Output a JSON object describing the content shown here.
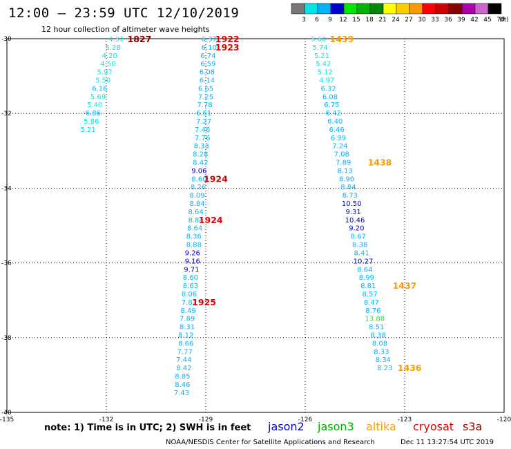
{
  "title": "12:00 – 23:59 UTC 12/10/2019",
  "subtitle": "12 hour collection of altimeter wave heights",
  "note": "note: 1) Time is in UTC; 2) SWH is in feet",
  "credit": "NOAA/NESDIS Center for Satellite Applications and Research",
  "timestamp": "Dec 11 13:27:54 UTC 2019",
  "legend": [
    {
      "name": "jason2",
      "color": "#0000cc"
    },
    {
      "name": "jason3",
      "color": "#00aa00"
    },
    {
      "name": "altika",
      "color": "#ff9900"
    },
    {
      "name": "cryosat",
      "color": "#dd0000"
    },
    {
      "name": "s3a",
      "color": "#880000"
    }
  ],
  "colorbar": {
    "labels": [
      "3",
      "6",
      "9",
      "12",
      "15",
      "18",
      "21",
      "24",
      "27",
      "30",
      "33",
      "36",
      "39",
      "42",
      "45",
      "70",
      "(ft)"
    ],
    "colors": [
      "#777777",
      "#00e6e6",
      "#00b3ff",
      "#0000cc",
      "#00e600",
      "#00b300",
      "#008800",
      "#ffff00",
      "#ffcc00",
      "#ff9900",
      "#ff0000",
      "#cc0000",
      "#880000",
      "#aa00aa",
      "#cc66cc",
      "#000000"
    ]
  },
  "chart_data": {
    "type": "scatter",
    "x_axis": {
      "ticks": [
        -135,
        -132,
        -129,
        -126,
        -123,
        -120
      ]
    },
    "y_axis": {
      "ticks": [
        -30,
        -32,
        -34,
        -36,
        -38,
        -40
      ],
      "ylim": [
        -40,
        -30
      ]
    },
    "grid": true,
    "tracks": [
      {
        "points": [
          {
            "lon": -131.7,
            "lat": -30.0,
            "v": "4.31",
            "c": "#00e6e6"
          },
          {
            "lon": -131.8,
            "lat": -30.22,
            "v": "5.28",
            "c": "#00e6e6"
          },
          {
            "lon": -131.9,
            "lat": -30.44,
            "v": "4.20",
            "c": "#00e6e6"
          },
          {
            "lon": -131.95,
            "lat": -30.66,
            "v": "4.50",
            "c": "#00e6e6"
          },
          {
            "lon": -132.05,
            "lat": -30.88,
            "v": "5.97",
            "c": "#00e6e6"
          },
          {
            "lon": -132.1,
            "lat": -31.1,
            "v": "5.50",
            "c": "#00e6e6"
          },
          {
            "lon": -132.2,
            "lat": -31.32,
            "v": "6.16",
            "c": "#00b3ff"
          },
          {
            "lon": -132.25,
            "lat": -31.54,
            "v": "5.69",
            "c": "#00e6e6"
          },
          {
            "lon": -132.35,
            "lat": -31.76,
            "v": "5.40",
            "c": "#00e6e6"
          },
          {
            "lon": -132.4,
            "lat": -31.98,
            "v": "6.86",
            "c": "#00b3ff"
          },
          {
            "lon": -132.45,
            "lat": -32.2,
            "v": "5.86",
            "c": "#00e6e6"
          },
          {
            "lon": -132.55,
            "lat": -32.42,
            "v": "5.21",
            "c": "#00e6e6"
          }
        ]
      },
      {
        "points": [
          {
            "lon": -128.9,
            "lat": -30.0,
            "v": "6.37",
            "c": "#00b3ff"
          },
          {
            "lon": -128.9,
            "lat": -30.22,
            "v": "6.10",
            "c": "#00b3ff"
          },
          {
            "lon": -128.93,
            "lat": -30.44,
            "v": "6.74",
            "c": "#00b3ff"
          },
          {
            "lon": -128.93,
            "lat": -30.66,
            "v": "6.59",
            "c": "#00b3ff"
          },
          {
            "lon": -128.96,
            "lat": -30.88,
            "v": "6.08",
            "c": "#00b3ff"
          },
          {
            "lon": -128.96,
            "lat": -31.1,
            "v": "6.14",
            "c": "#00b3ff"
          },
          {
            "lon": -129.0,
            "lat": -31.32,
            "v": "6.65",
            "c": "#00b3ff"
          },
          {
            "lon": -129.0,
            "lat": -31.54,
            "v": "7.25",
            "c": "#00b3ff"
          },
          {
            "lon": -129.03,
            "lat": -31.76,
            "v": "7.78",
            "c": "#00b3ff"
          },
          {
            "lon": -129.06,
            "lat": -31.98,
            "v": "6.61",
            "c": "#00b3ff"
          },
          {
            "lon": -129.06,
            "lat": -32.2,
            "v": "7.27",
            "c": "#00b3ff"
          },
          {
            "lon": -129.1,
            "lat": -32.42,
            "v": "7.46",
            "c": "#00b3ff"
          },
          {
            "lon": -129.1,
            "lat": -32.64,
            "v": "7.76",
            "c": "#00b3ff"
          },
          {
            "lon": -129.13,
            "lat": -32.86,
            "v": "8.33",
            "c": "#00b3ff"
          },
          {
            "lon": -129.16,
            "lat": -33.08,
            "v": "8.28",
            "c": "#00b3ff"
          },
          {
            "lon": -129.16,
            "lat": -33.3,
            "v": "8.42",
            "c": "#00b3ff"
          },
          {
            "lon": -129.2,
            "lat": -33.52,
            "v": "9.06",
            "c": "#0000cc"
          },
          {
            "lon": -129.2,
            "lat": -33.74,
            "v": "8.60",
            "c": "#00b3ff"
          },
          {
            "lon": -129.23,
            "lat": -33.96,
            "v": "8.26",
            "c": "#00b3ff"
          },
          {
            "lon": -129.26,
            "lat": -34.18,
            "v": "8.09",
            "c": "#00b3ff"
          },
          {
            "lon": -129.26,
            "lat": -34.4,
            "v": "8.84",
            "c": "#00b3ff"
          },
          {
            "lon": -129.3,
            "lat": -34.62,
            "v": "8.64",
            "c": "#00b3ff"
          },
          {
            "lon": -129.3,
            "lat": -34.84,
            "v": "8.84",
            "c": "#00b3ff"
          },
          {
            "lon": -129.33,
            "lat": -35.06,
            "v": "8.64",
            "c": "#00b3ff"
          },
          {
            "lon": -129.36,
            "lat": -35.28,
            "v": "8.36",
            "c": "#00b3ff"
          },
          {
            "lon": -129.36,
            "lat": -35.5,
            "v": "8.88",
            "c": "#00b3ff"
          },
          {
            "lon": -129.4,
            "lat": -35.72,
            "v": "9.26",
            "c": "#0000cc"
          },
          {
            "lon": -129.4,
            "lat": -35.94,
            "v": "9.16",
            "c": "#0000cc"
          },
          {
            "lon": -129.43,
            "lat": -36.16,
            "v": "9.71",
            "c": "#0000cc"
          },
          {
            "lon": -129.46,
            "lat": -36.38,
            "v": "8.60",
            "c": "#00b3ff"
          },
          {
            "lon": -129.46,
            "lat": -36.6,
            "v": "8.63",
            "c": "#00b3ff"
          },
          {
            "lon": -129.5,
            "lat": -36.82,
            "v": "8.06",
            "c": "#00b3ff"
          },
          {
            "lon": -129.5,
            "lat": -37.04,
            "v": "7.82",
            "c": "#00b3ff"
          },
          {
            "lon": -129.53,
            "lat": -37.26,
            "v": "8.49",
            "c": "#00b3ff"
          },
          {
            "lon": -129.56,
            "lat": -37.48,
            "v": "7.89",
            "c": "#00b3ff"
          },
          {
            "lon": -129.56,
            "lat": -37.7,
            "v": "8.31",
            "c": "#00b3ff"
          },
          {
            "lon": -129.6,
            "lat": -37.92,
            "v": "8.12",
            "c": "#00b3ff"
          },
          {
            "lon": -129.6,
            "lat": -38.14,
            "v": "8.66",
            "c": "#00b3ff"
          },
          {
            "lon": -129.63,
            "lat": -38.36,
            "v": "7.77",
            "c": "#00b3ff"
          },
          {
            "lon": -129.66,
            "lat": -38.58,
            "v": "7.44",
            "c": "#00b3ff"
          },
          {
            "lon": -129.66,
            "lat": -38.8,
            "v": "8.42",
            "c": "#00b3ff"
          },
          {
            "lon": -129.7,
            "lat": -39.02,
            "v": "8.85",
            "c": "#00b3ff"
          },
          {
            "lon": -129.7,
            "lat": -39.24,
            "v": "8.46",
            "c": "#00b3ff"
          },
          {
            "lon": -129.73,
            "lat": -39.46,
            "v": "7.43",
            "c": "#00b3ff"
          }
        ]
      },
      {
        "points": [
          {
            "lon": -125.6,
            "lat": -30.0,
            "v": "5.60",
            "c": "#00e6e6"
          },
          {
            "lon": -125.55,
            "lat": -30.22,
            "v": "5.74",
            "c": "#00e6e6"
          },
          {
            "lon": -125.5,
            "lat": -30.44,
            "v": "5.21",
            "c": "#00e6e6"
          },
          {
            "lon": -125.45,
            "lat": -30.66,
            "v": "5.42",
            "c": "#00e6e6"
          },
          {
            "lon": -125.4,
            "lat": -30.88,
            "v": "5.12",
            "c": "#00e6e6"
          },
          {
            "lon": -125.35,
            "lat": -31.1,
            "v": "4.97",
            "c": "#00e6e6"
          },
          {
            "lon": -125.3,
            "lat": -31.32,
            "v": "6.32",
            "c": "#00b3ff"
          },
          {
            "lon": -125.25,
            "lat": -31.54,
            "v": "6.08",
            "c": "#00b3ff"
          },
          {
            "lon": -125.2,
            "lat": -31.76,
            "v": "6.75",
            "c": "#00b3ff"
          },
          {
            "lon": -125.15,
            "lat": -31.98,
            "v": "6.42",
            "c": "#00b3ff"
          },
          {
            "lon": -125.1,
            "lat": -32.2,
            "v": "6.40",
            "c": "#00b3ff"
          },
          {
            "lon": -125.05,
            "lat": -32.42,
            "v": "6.46",
            "c": "#00b3ff"
          },
          {
            "lon": -125.0,
            "lat": -32.64,
            "v": "6.99",
            "c": "#00b3ff"
          },
          {
            "lon": -124.95,
            "lat": -32.86,
            "v": "7.24",
            "c": "#00b3ff"
          },
          {
            "lon": -124.9,
            "lat": -33.08,
            "v": "7.08",
            "c": "#00b3ff"
          },
          {
            "lon": -124.85,
            "lat": -33.3,
            "v": "7.89",
            "c": "#00b3ff"
          },
          {
            "lon": -124.8,
            "lat": -33.52,
            "v": "8.13",
            "c": "#00b3ff"
          },
          {
            "lon": -124.75,
            "lat": -33.74,
            "v": "8.90",
            "c": "#00b3ff"
          },
          {
            "lon": -124.7,
            "lat": -33.96,
            "v": "8.84",
            "c": "#00b3ff"
          },
          {
            "lon": -124.65,
            "lat": -34.18,
            "v": "8.73",
            "c": "#00b3ff"
          },
          {
            "lon": -124.6,
            "lat": -34.4,
            "v": "10.50",
            "c": "#0000cc"
          },
          {
            "lon": -124.55,
            "lat": -34.62,
            "v": "9.31",
            "c": "#0000cc"
          },
          {
            "lon": -124.5,
            "lat": -34.84,
            "v": "10.46",
            "c": "#0000cc"
          },
          {
            "lon": -124.45,
            "lat": -35.06,
            "v": "9.20",
            "c": "#0000cc"
          },
          {
            "lon": -124.4,
            "lat": -35.28,
            "v": "8.67",
            "c": "#00b3ff"
          },
          {
            "lon": -124.35,
            "lat": -35.5,
            "v": "8.38",
            "c": "#00b3ff"
          },
          {
            "lon": -124.3,
            "lat": -35.72,
            "v": "8.41",
            "c": "#00b3ff"
          },
          {
            "lon": -124.25,
            "lat": -35.94,
            "v": "10.27",
            "c": "#0000cc"
          },
          {
            "lon": -124.2,
            "lat": -36.16,
            "v": "8.64",
            "c": "#00b3ff"
          },
          {
            "lon": -124.15,
            "lat": -36.38,
            "v": "8.99",
            "c": "#00b3ff"
          },
          {
            "lon": -124.1,
            "lat": -36.6,
            "v": "8.81",
            "c": "#00b3ff"
          },
          {
            "lon": -124.05,
            "lat": -36.82,
            "v": "8.57",
            "c": "#00b3ff"
          },
          {
            "lon": -124.0,
            "lat": -37.04,
            "v": "8.47",
            "c": "#00b3ff"
          },
          {
            "lon": -123.95,
            "lat": -37.26,
            "v": "8.76",
            "c": "#00b3ff"
          },
          {
            "lon": -123.9,
            "lat": -37.48,
            "v": "13.88",
            "c": "#33dd33"
          },
          {
            "lon": -123.85,
            "lat": -37.7,
            "v": "8.51",
            "c": "#00b3ff"
          },
          {
            "lon": -123.8,
            "lat": -37.92,
            "v": "8.38",
            "c": "#00b3ff"
          },
          {
            "lon": -123.75,
            "lat": -38.14,
            "v": "8.08",
            "c": "#00b3ff"
          },
          {
            "lon": -123.7,
            "lat": -38.36,
            "v": "8.33",
            "c": "#00b3ff"
          },
          {
            "lon": -123.65,
            "lat": -38.58,
            "v": "8.34",
            "c": "#00b3ff"
          },
          {
            "lon": -123.6,
            "lat": -38.8,
            "v": "8.23",
            "c": "#00b3ff"
          }
        ]
      }
    ],
    "time_labels": [
      {
        "lon": -131.0,
        "lat": -30.0,
        "t": "1827",
        "c": "#880000"
      },
      {
        "lon": -128.35,
        "lat": -30.0,
        "t": "1922",
        "c": "#dd0000"
      },
      {
        "lon": -128.35,
        "lat": -30.22,
        "t": "1923",
        "c": "#dd0000"
      },
      {
        "lon": -124.9,
        "lat": -30.0,
        "t": "1439",
        "c": "#ff9900"
      },
      {
        "lon": -128.7,
        "lat": -33.74,
        "t": "1924",
        "c": "#dd0000"
      },
      {
        "lon": -128.85,
        "lat": -34.84,
        "t": "1924",
        "c": "#dd0000"
      },
      {
        "lon": -123.75,
        "lat": -33.3,
        "t": "1438",
        "c": "#ff9900"
      },
      {
        "lon": -123.0,
        "lat": -36.6,
        "t": "1437",
        "c": "#ff9900"
      },
      {
        "lon": -129.05,
        "lat": -37.04,
        "t": "1925",
        "c": "#dd0000"
      },
      {
        "lon": -122.85,
        "lat": -38.8,
        "t": "1436",
        "c": "#ff9900"
      }
    ]
  }
}
